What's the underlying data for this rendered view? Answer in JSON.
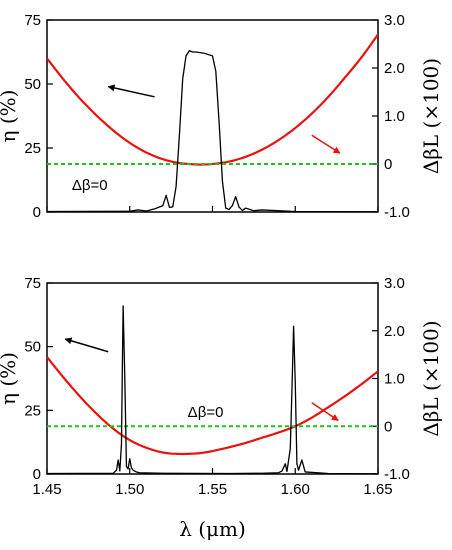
{
  "chart_data": [
    {
      "type": "line",
      "panel": "top",
      "xlabel": "",
      "ylabel": "η (%)",
      "y2label": "ΔβL (×100)",
      "xlim": [
        1.45,
        1.65
      ],
      "ylim": [
        0,
        75
      ],
      "y2lim": [
        -1.0,
        3.0
      ],
      "xticks": [],
      "yticks": [
        "0",
        "25",
        "50",
        "75"
      ],
      "y2ticks": [
        "-1.0",
        "0",
        "1.0",
        "2.0",
        "3.0"
      ],
      "series": [
        {
          "axis": "left",
          "color": "#000000",
          "x": [
            1.45,
            1.5,
            1.505,
            1.51,
            1.515,
            1.52,
            1.522,
            1.524,
            1.526,
            1.528,
            1.53,
            1.532,
            1.534,
            1.536,
            1.538,
            1.54,
            1.545,
            1.55,
            1.552,
            1.554,
            1.556,
            1.558,
            1.56,
            1.562,
            1.564,
            1.566,
            1.568,
            1.57,
            1.575,
            1.58,
            1.6,
            1.65
          ],
          "y": [
            0.2,
            0.3,
            0.8,
            0.4,
            1.2,
            2.5,
            6.5,
            1.8,
            2.0,
            10,
            30,
            52,
            61,
            63,
            62.5,
            62.5,
            62,
            61,
            55,
            35,
            12,
            1.5,
            1.0,
            2.5,
            6.0,
            2.0,
            0.6,
            1.5,
            0.5,
            0.8,
            0.2,
            0.1
          ]
        },
        {
          "axis": "right",
          "color": "#e8130e",
          "x": [
            1.45,
            1.46,
            1.47,
            1.48,
            1.49,
            1.5,
            1.51,
            1.52,
            1.53,
            1.54,
            1.545,
            1.55,
            1.56,
            1.57,
            1.58,
            1.59,
            1.6,
            1.61,
            1.62,
            1.63,
            1.64,
            1.65
          ],
          "y": [
            2.2,
            1.76,
            1.36,
            1.01,
            0.7,
            0.44,
            0.24,
            0.1,
            0.02,
            -0.01,
            -0.01,
            0.0,
            0.05,
            0.15,
            0.3,
            0.5,
            0.75,
            1.05,
            1.4,
            1.8,
            2.22,
            2.7
          ]
        },
        {
          "axis": "right",
          "color": "#1ec21e",
          "dashed": true,
          "x": [
            1.45,
            1.65
          ],
          "y": [
            0,
            0
          ]
        }
      ],
      "annotations": [
        {
          "text": "Δβ=0",
          "x": 1.465,
          "y": 10.5,
          "axis": "left"
        }
      ],
      "arrows": [
        {
          "color": "#000000",
          "from": [
            1.515,
            45
          ],
          "to": [
            1.487,
            49
          ]
        },
        {
          "color": "#e8130e",
          "from": [
            1.61,
            30
          ],
          "to": [
            1.627,
            23
          ]
        }
      ]
    },
    {
      "type": "line",
      "panel": "bottom",
      "xlabel": "λ (μm)",
      "ylabel": "η (%)",
      "y2label": "ΔβL (×100)",
      "xlim": [
        1.45,
        1.65
      ],
      "ylim": [
        0,
        75
      ],
      "y2lim": [
        -1.0,
        3.0
      ],
      "xticks": [
        "1.45",
        "1.50",
        "1.55",
        "1.60",
        "1.65"
      ],
      "yticks": [
        "0",
        "25",
        "50",
        "75"
      ],
      "y2ticks": [
        "-1.0",
        "0",
        "1.0",
        "2.0",
        "3.0"
      ],
      "series": [
        {
          "axis": "left",
          "color": "#000000",
          "x": [
            1.45,
            1.49,
            1.492,
            1.493,
            1.494,
            1.495,
            1.4955,
            1.496,
            1.497,
            1.498,
            1.499,
            1.5,
            1.501,
            1.502,
            1.504,
            1.506,
            1.52,
            1.56,
            1.58,
            1.59,
            1.592,
            1.594,
            1.595,
            1.596,
            1.597,
            1.598,
            1.599,
            1.6,
            1.601,
            1.602,
            1.604,
            1.606,
            1.62,
            1.65
          ],
          "y": [
            0.2,
            0.3,
            1.5,
            5.5,
            1.2,
            12,
            40,
            66,
            38,
            3.0,
            2.0,
            6.0,
            2.5,
            1.5,
            0.8,
            0.5,
            0.3,
            0.2,
            0.3,
            0.5,
            1.2,
            4.0,
            1.0,
            5.5,
            10,
            33,
            58,
            36,
            4.0,
            1.5,
            5.5,
            0.8,
            0.2,
            0.1
          ]
        },
        {
          "axis": "right",
          "color": "#e8130e",
          "x": [
            1.45,
            1.46,
            1.47,
            1.48,
            1.49,
            1.5,
            1.51,
            1.52,
            1.53,
            1.54,
            1.545,
            1.55,
            1.56,
            1.57,
            1.58,
            1.59,
            1.6,
            1.61,
            1.62,
            1.63,
            1.64,
            1.65
          ],
          "y": [
            1.45,
            1.02,
            0.62,
            0.26,
            -0.05,
            -0.29,
            -0.45,
            -0.55,
            -0.58,
            -0.57,
            -0.55,
            -0.52,
            -0.44,
            -0.35,
            -0.24,
            -0.13,
            0.0,
            0.18,
            0.4,
            0.63,
            0.88,
            1.15
          ]
        },
        {
          "axis": "right",
          "color": "#1ec21e",
          "dashed": true,
          "x": [
            1.45,
            1.65
          ],
          "y": [
            0,
            0
          ]
        }
      ],
      "annotations": [
        {
          "text": "Δβ=0",
          "x": 1.535,
          "y": 24.3,
          "axis": "left"
        }
      ],
      "arrows": [
        {
          "color": "#000000",
          "from": [
            1.487,
            48
          ],
          "to": [
            1.461,
            53
          ]
        },
        {
          "color": "#e8130e",
          "from": [
            1.61,
            28
          ],
          "to": [
            1.626,
            21
          ]
        }
      ]
    }
  ]
}
